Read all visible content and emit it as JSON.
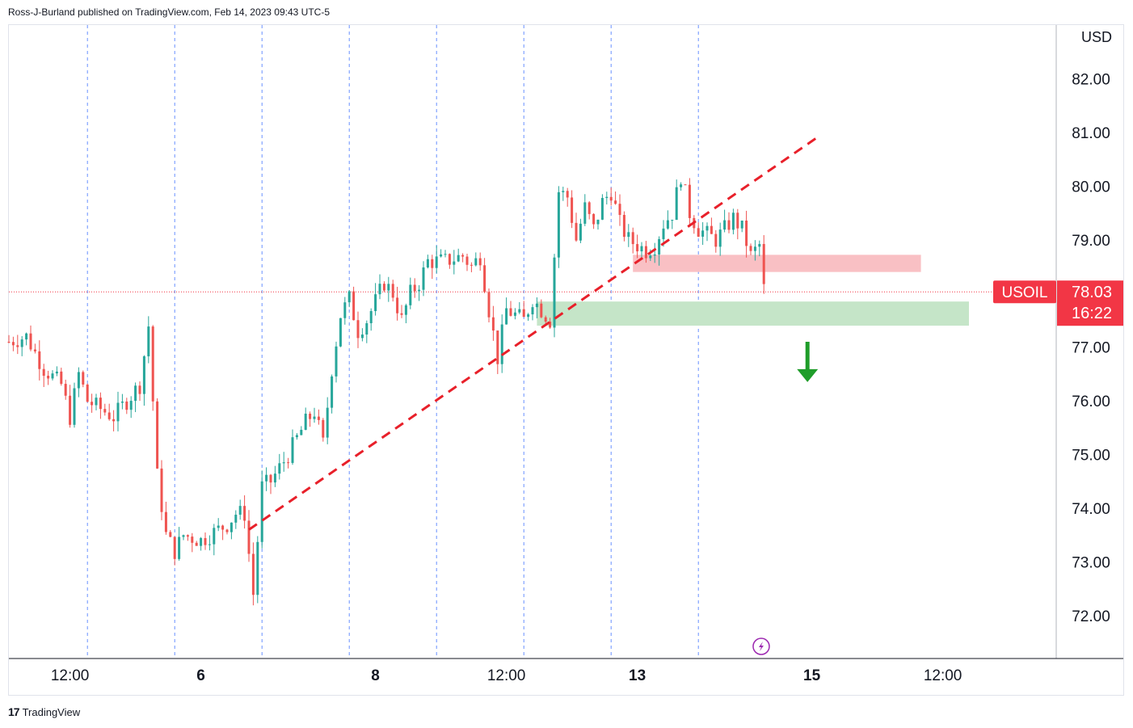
{
  "header": {
    "text": "Ross-J-Burland published on TradingView.com, Feb 14, 2023 09:43 UTC-5"
  },
  "footer": {
    "logo_icon": "tradingview-logo-icon",
    "brand": "TradingView"
  },
  "colors": {
    "up": "#26a69a",
    "down": "#ef5350",
    "trend": "#e8202a",
    "resistance_zone": "#f9c0c4",
    "support_zone": "#c5e5c8",
    "arrow": "#1f9d2a",
    "price_tag": "#f23645",
    "session_line": "#2962ff"
  },
  "chart_data": {
    "type": "candlestick",
    "symbol": "USOIL",
    "currency": "USD",
    "last_price": "78.03",
    "countdown": "16:22",
    "ylim": [
      71.2,
      83.0
    ],
    "y_ticks": [
      "72.00",
      "73.00",
      "74.00",
      "75.00",
      "76.00",
      "77.00",
      "78.00",
      "79.00",
      "80.00",
      "81.00",
      "82.00"
    ],
    "x_ticks": [
      {
        "label": "12:00",
        "bold": false,
        "t": 7
      },
      {
        "label": "6",
        "bold": true,
        "t": 22
      },
      {
        "label": "8",
        "bold": true,
        "t": 42
      },
      {
        "label": "12:00",
        "bold": false,
        "t": 57
      },
      {
        "label": "13",
        "bold": true,
        "t": 72
      },
      {
        "label": "15",
        "bold": true,
        "t": 92
      },
      {
        "label": "12:00",
        "bold": false,
        "t": 107
      }
    ],
    "session_lines": [
      9,
      19,
      29,
      39,
      49,
      59,
      69,
      79
    ],
    "path": [
      [
        0,
        77.1
      ],
      [
        2,
        77.2
      ],
      [
        4,
        76.6
      ],
      [
        6,
        76.3
      ],
      [
        7,
        75.7
      ],
      [
        8,
        76.5
      ],
      [
        9,
        76.0
      ],
      [
        10,
        75.9
      ],
      [
        12,
        75.7
      ],
      [
        14,
        76.1
      ],
      [
        15,
        76.3
      ],
      [
        16,
        77.4
      ],
      [
        17,
        74.6
      ],
      [
        18,
        73.5
      ],
      [
        19,
        73.2
      ],
      [
        20,
        73.5
      ],
      [
        22,
        73.4
      ],
      [
        24,
        73.6
      ],
      [
        25,
        73.7
      ],
      [
        26,
        73.9
      ],
      [
        27,
        73.9
      ],
      [
        28,
        72.4
      ],
      [
        29,
        74.4
      ],
      [
        30,
        74.5
      ],
      [
        32,
        75.0
      ],
      [
        34,
        75.6
      ],
      [
        35,
        75.8
      ],
      [
        36,
        75.2
      ],
      [
        37,
        76.6
      ],
      [
        38,
        77.6
      ],
      [
        39,
        77.9
      ],
      [
        40,
        77.3
      ],
      [
        41,
        77.5
      ],
      [
        43,
        78.2
      ],
      [
        44,
        78.0
      ],
      [
        45,
        77.5
      ],
      [
        46,
        78.0
      ],
      [
        47,
        78.2
      ],
      [
        48,
        78.6
      ],
      [
        50,
        78.6
      ],
      [
        52,
        78.7
      ],
      [
        53,
        78.5
      ],
      [
        54,
        78.7
      ],
      [
        55,
        77.7
      ],
      [
        56,
        76.8
      ],
      [
        57,
        77.7
      ],
      [
        58,
        77.6
      ],
      [
        59,
        77.5
      ],
      [
        60,
        77.9
      ],
      [
        61,
        77.7
      ],
      [
        62,
        77.5
      ],
      [
        63,
        79.9
      ],
      [
        64,
        79.8
      ],
      [
        65,
        79.0
      ],
      [
        66,
        79.6
      ],
      [
        67,
        79.2
      ],
      [
        68,
        79.7
      ],
      [
        69,
        79.9
      ],
      [
        70,
        79.3
      ],
      [
        71,
        79.0
      ],
      [
        72,
        78.9
      ],
      [
        73,
        78.8
      ],
      [
        74,
        78.9
      ],
      [
        75,
        79.3
      ],
      [
        76,
        79.5
      ],
      [
        77,
        80.2
      ],
      [
        78,
        79.5
      ],
      [
        79,
        79.2
      ],
      [
        80,
        79.1
      ],
      [
        81,
        79.0
      ],
      [
        82,
        79.2
      ],
      [
        83,
        79.4
      ],
      [
        84,
        79.2
      ],
      [
        85,
        78.7
      ],
      [
        86,
        78.9
      ],
      [
        86.6,
        78.03
      ]
    ],
    "trendline": [
      [
        27.5,
        73.6
      ],
      [
        93,
        80.95
      ]
    ],
    "zones": [
      {
        "name": "resistance-zone",
        "t0": 71.5,
        "t1": 104.5,
        "y0": 78.4,
        "y1": 78.72
      },
      {
        "name": "support-zone",
        "t0": 60.5,
        "t1": 110,
        "y0": 77.4,
        "y1": 77.85
      }
    ],
    "arrow": {
      "t": 91.5,
      "y_from": 77.1,
      "y_to": 76.35
    },
    "marker": {
      "t": 86.2,
      "icon": "lightning-icon"
    }
  }
}
